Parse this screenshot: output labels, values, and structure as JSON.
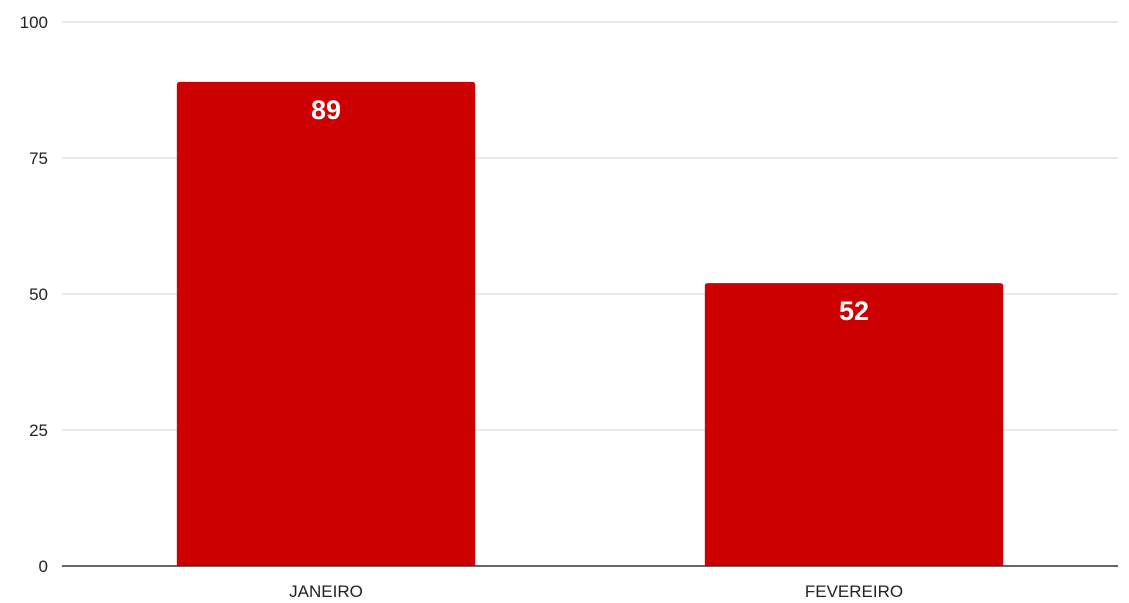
{
  "chart_data": {
    "type": "bar",
    "categories": [
      "JANEIRO",
      "FEVEREIRO"
    ],
    "values": [
      89,
      52
    ],
    "data_labels": [
      "89",
      "52"
    ],
    "ylim": [
      0,
      100
    ],
    "yticks": [
      0,
      25,
      50,
      75,
      100
    ],
    "ytick_labels": [
      "0",
      "25",
      "50",
      "75",
      "100"
    ],
    "grid": true,
    "legend": "none",
    "title": "",
    "xlabel": "",
    "ylabel": ""
  },
  "colors": {
    "bar": "#cc0000",
    "grid": "#d0d0d0",
    "baseline": "#333333",
    "data_label": "#ffffff",
    "tick_label": "#222222"
  }
}
